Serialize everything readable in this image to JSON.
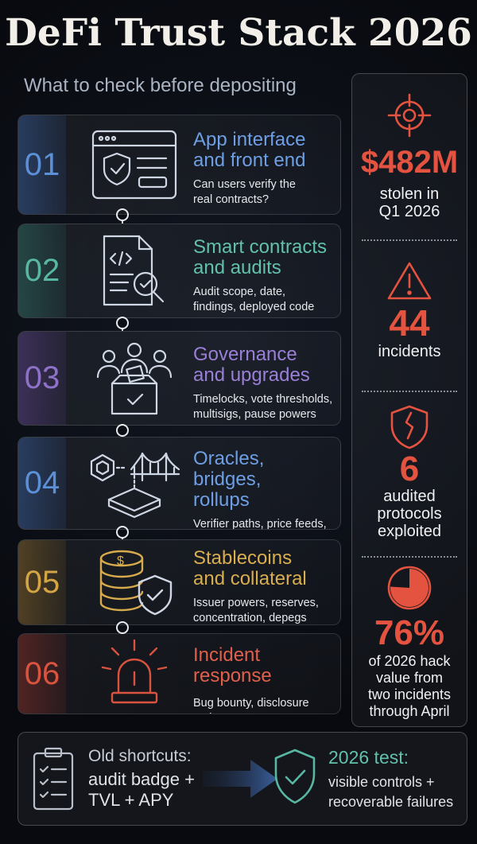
{
  "title": "DeFi Trust Stack 2026",
  "subtitle": "What to check before depositing",
  "steps": [
    {
      "num": "01",
      "title": "App interface\nand front end",
      "desc": "Can users verify the\nreal contracts?",
      "color": "#5b8fd6",
      "icon": "browser-shield-icon"
    },
    {
      "num": "02",
      "title": "Smart contracts\nand audits",
      "desc": "Audit scope, date,\nfindings, deployed code",
      "color": "#58b7a3",
      "icon": "code-document-magnifier-icon"
    },
    {
      "num": "03",
      "title": "Governance\nand upgrades",
      "desc": "Timelocks, vote thresholds,\nmultisigs, pause powers",
      "color": "#8e72c9",
      "icon": "people-ballot-box-icon"
    },
    {
      "num": "04",
      "title": "Oracles, bridges,\nrollups",
      "desc": "Verifier paths, price feeds,\nescape hatches",
      "color": "#5b8fd6",
      "icon": "oracle-bridge-layer-icon"
    },
    {
      "num": "05",
      "title": "Stablecoins\nand collateral",
      "desc": "Issuer powers, reserves,\nconcentration, depegs",
      "color": "#d3a545",
      "icon": "coin-stack-shield-icon"
    },
    {
      "num": "06",
      "title": "Incident response",
      "desc": "Bug bounty, disclosure path,\nwhitehat rules, post-mortem",
      "color": "#d9533f",
      "icon": "alarm-siren-icon"
    }
  ],
  "stats": [
    {
      "value": "$482M",
      "label": "stolen in\nQ1 2026",
      "icon": "target-crosshair-icon"
    },
    {
      "value": "44",
      "label": "incidents",
      "icon": "warning-triangle-icon"
    },
    {
      "value": "6",
      "label": "audited\nprotocols\nexploited",
      "icon": "cracked-shield-icon"
    },
    {
      "value": "76%",
      "label": "of 2026 hack\nvalue from\ntwo incidents\nthrough April",
      "icon": "pie-chart-icon",
      "fraction": 0.76
    }
  ],
  "bottom": {
    "old_label": "Old shortcuts:",
    "old_desc": "audit badge +\nTVL + APY",
    "new_label": "2026 test:",
    "new_desc": "visible controls +\nrecoverable failures"
  },
  "colors": {
    "accent_red": "#e4533f",
    "accent_teal": "#58b7a3"
  }
}
